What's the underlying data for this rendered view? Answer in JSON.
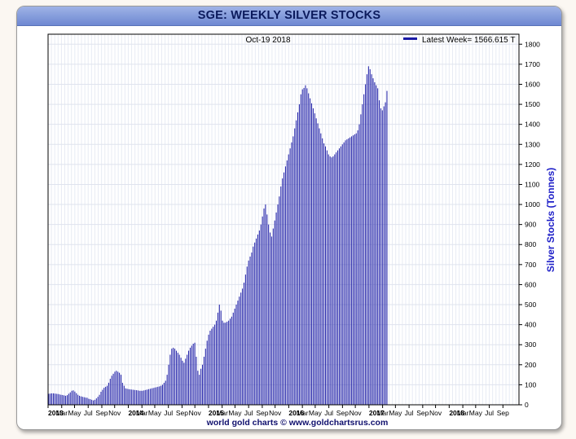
{
  "chart_data": {
    "type": "bar",
    "title": "SGE: WEEKLY SILVER STOCKS",
    "date_label": "Oct-19  2018",
    "legend": "Latest Week= 1566.615 T",
    "ylabel": "Silver Stocks (Tonnes)",
    "credit": "world gold charts © www.goldchartsrus.com",
    "ylim": [
      0,
      1850
    ],
    "yticks": [
      0,
      100,
      200,
      300,
      400,
      500,
      600,
      700,
      800,
      900,
      1000,
      1100,
      1200,
      1300,
      1400,
      1500,
      1600,
      1700,
      1800
    ],
    "xlim": [
      2013.0,
      2018.87
    ],
    "xtick_labels": [
      {
        "t": 2013.0,
        "label": "2013"
      },
      {
        "t": 2013.17,
        "label": "Mar"
      },
      {
        "t": 2013.33,
        "label": "May"
      },
      {
        "t": 2013.5,
        "label": "Jul"
      },
      {
        "t": 2013.67,
        "label": "Sep"
      },
      {
        "t": 2013.83,
        "label": "Nov"
      },
      {
        "t": 2014.0,
        "label": "2014"
      },
      {
        "t": 2014.17,
        "label": "Mar"
      },
      {
        "t": 2014.33,
        "label": "May"
      },
      {
        "t": 2014.5,
        "label": "Jul"
      },
      {
        "t": 2014.67,
        "label": "Sep"
      },
      {
        "t": 2014.83,
        "label": "Nov"
      },
      {
        "t": 2015.0,
        "label": "2015"
      },
      {
        "t": 2015.17,
        "label": "Mar"
      },
      {
        "t": 2015.33,
        "label": "May"
      },
      {
        "t": 2015.5,
        "label": "Jul"
      },
      {
        "t": 2015.67,
        "label": "Sep"
      },
      {
        "t": 2015.83,
        "label": "Nov"
      },
      {
        "t": 2016.0,
        "label": "2016"
      },
      {
        "t": 2016.17,
        "label": "Mar"
      },
      {
        "t": 2016.33,
        "label": "May"
      },
      {
        "t": 2016.5,
        "label": "Jul"
      },
      {
        "t": 2016.67,
        "label": "Sep"
      },
      {
        "t": 2016.83,
        "label": "Nov"
      },
      {
        "t": 2017.0,
        "label": "2017"
      },
      {
        "t": 2017.17,
        "label": "Mar"
      },
      {
        "t": 2017.33,
        "label": "May"
      },
      {
        "t": 2017.5,
        "label": "Jul"
      },
      {
        "t": 2017.67,
        "label": "Sep"
      },
      {
        "t": 2017.83,
        "label": "Nov"
      },
      {
        "t": 2018.0,
        "label": "2018"
      },
      {
        "t": 2018.17,
        "label": "Mar"
      },
      {
        "t": 2018.33,
        "label": "May"
      },
      {
        "t": 2018.5,
        "label": "Jul"
      },
      {
        "t": 2018.67,
        "label": "Sep"
      }
    ],
    "bar_color": "#1a1aa6",
    "grid": true,
    "series": [
      {
        "start": "2013-01-04",
        "frequency": "weekly",
        "values": [
          55,
          56,
          57,
          57,
          56,
          55,
          54,
          52,
          50,
          49,
          47,
          45,
          48,
          55,
          62,
          70,
          72,
          66,
          58,
          50,
          45,
          42,
          40,
          38,
          36,
          35,
          30,
          28,
          25,
          22,
          25,
          32,
          40,
          50,
          65,
          75,
          85,
          90,
          95,
          110,
          130,
          145,
          155,
          165,
          170,
          165,
          160,
          150,
          110,
          95,
          82,
          80,
          78,
          77,
          76,
          75,
          74,
          73,
          72,
          70,
          70,
          70,
          72,
          74,
          76,
          78,
          80,
          82,
          84,
          86,
          88,
          90,
          92,
          95,
          100,
          110,
          120,
          150,
          200,
          250,
          280,
          285,
          280,
          270,
          260,
          250,
          235,
          220,
          210,
          230,
          250,
          270,
          285,
          295,
          305,
          310,
          240,
          170,
          150,
          180,
          200,
          240,
          280,
          320,
          350,
          370,
          380,
          390,
          400,
          420,
          460,
          500,
          470,
          420,
          410,
          410,
          415,
          420,
          430,
          440,
          460,
          480,
          500,
          520,
          540,
          560,
          580,
          610,
          650,
          690,
          720,
          740,
          760,
          790,
          810,
          830,
          850,
          870,
          900,
          940,
          980,
          1000,
          950,
          900,
          860,
          840,
          880,
          920,
          960,
          1000,
          1040,
          1090,
          1130,
          1160,
          1190,
          1220,
          1250,
          1280,
          1310,
          1340,
          1380,
          1420,
          1460,
          1500,
          1550,
          1575,
          1582,
          1595,
          1580,
          1555,
          1530,
          1505,
          1480,
          1455,
          1430,
          1405,
          1380,
          1355,
          1330,
          1305,
          1290,
          1270,
          1250,
          1240,
          1235,
          1240,
          1250,
          1260,
          1270,
          1280,
          1290,
          1300,
          1310,
          1320,
          1325,
          1330,
          1335,
          1340,
          1345,
          1350,
          1355,
          1370,
          1400,
          1450,
          1500,
          1550,
          1600,
          1650,
          1690,
          1675,
          1650,
          1630,
          1610,
          1595,
          1580,
          1520,
          1480,
          1470,
          1490,
          1510,
          1567
        ]
      }
    ]
  }
}
